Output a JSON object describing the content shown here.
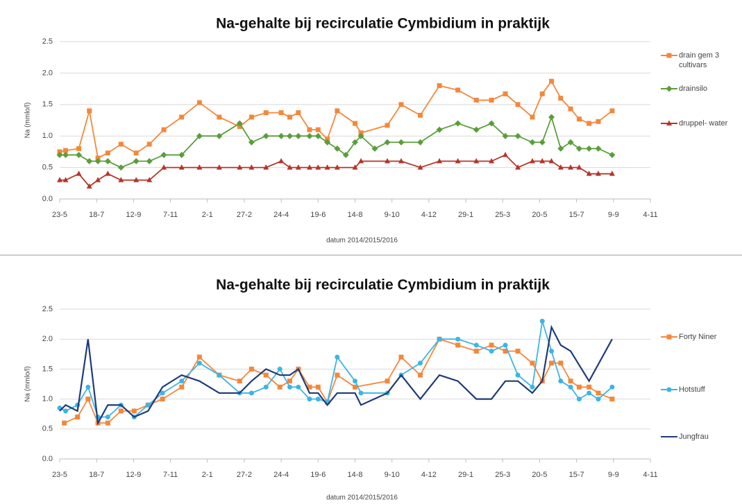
{
  "chart_data": [
    {
      "type": "line",
      "title": "Na-gehalte bij recirculatie Cymbidium in praktijk",
      "x_label": "datum 2014/2015/2016",
      "y_label": "Na (mmlo/l)",
      "xlim": [
        0,
        896
      ],
      "ylim": [
        0,
        2.5
      ],
      "yticks": [
        {
          "value": 0,
          "label": "0.0"
        },
        0.5,
        {
          "value": 1,
          "label": "1.0"
        },
        1.5,
        {
          "value": 2,
          "label": "2.0"
        },
        2.5
      ],
      "xticks": [
        {
          "value": 0,
          "label": "23-5"
        },
        {
          "value": 56,
          "label": "18-7"
        },
        {
          "value": 112,
          "label": "12-9"
        },
        {
          "value": 168,
          "label": "7-11"
        },
        {
          "value": 224,
          "label": "2-1"
        },
        {
          "value": 280,
          "label": "27-2"
        },
        {
          "value": 336,
          "label": "24-4"
        },
        {
          "value": 392,
          "label": "19-6"
        },
        {
          "value": 448,
          "label": "14-8"
        },
        {
          "value": 504,
          "label": "9-10"
        },
        {
          "value": 560,
          "label": "4-12"
        },
        {
          "value": 616,
          "label": "29-1"
        },
        {
          "value": 672,
          "label": "25-3"
        },
        {
          "value": 728,
          "label": "20-5"
        },
        {
          "value": 784,
          "label": "15-7"
        },
        {
          "value": 840,
          "label": "9-9"
        },
        {
          "value": 896,
          "label": "4-11"
        }
      ],
      "grid": true,
      "legend": "right",
      "series": [
        {
          "name": "drain gem 3 cultivars",
          "color": "#f4873a",
          "marker": "square",
          "x": [
            0,
            9,
            29,
            45,
            58,
            73,
            93,
            116,
            136,
            158,
            185,
            212,
            242,
            273,
            291,
            313,
            336,
            349,
            362,
            379,
            392,
            406,
            421,
            448,
            457,
            497,
            518,
            547,
            576,
            604,
            632,
            655,
            676,
            695,
            717,
            732,
            746,
            760,
            775,
            788,
            803,
            817,
            838
          ],
          "values": [
            0.75,
            0.77,
            0.8,
            1.4,
            0.65,
            0.73,
            0.87,
            0.73,
            0.87,
            1.1,
            1.3,
            1.53,
            1.3,
            1.15,
            1.3,
            1.37,
            1.37,
            1.3,
            1.37,
            1.1,
            1.1,
            0.95,
            1.4,
            1.2,
            1.05,
            1.17,
            1.5,
            1.33,
            1.8,
            1.73,
            1.57,
            1.57,
            1.67,
            1.5,
            1.3,
            1.67,
            1.87,
            1.6,
            1.43,
            1.27,
            1.2,
            1.23,
            1.4
          ]
        },
        {
          "name": "drainsilo",
          "color": "#5a9e3a",
          "marker": "diamond",
          "x": [
            0,
            9,
            29,
            45,
            58,
            73,
            93,
            116,
            136,
            158,
            185,
            212,
            242,
            273,
            291,
            313,
            336,
            349,
            362,
            379,
            392,
            406,
            421,
            434,
            448,
            457,
            478,
            497,
            518,
            547,
            576,
            604,
            632,
            655,
            676,
            695,
            717,
            732,
            746,
            760,
            775,
            788,
            803,
            817,
            838
          ],
          "values": [
            0.7,
            0.7,
            0.7,
            0.6,
            0.6,
            0.6,
            0.5,
            0.6,
            0.6,
            0.7,
            0.7,
            1.0,
            1.0,
            1.2,
            0.9,
            1.0,
            1.0,
            1.0,
            1.0,
            1.0,
            1.0,
            0.9,
            0.8,
            0.7,
            0.9,
            1.0,
            0.8,
            0.9,
            0.9,
            0.9,
            1.1,
            1.2,
            1.1,
            1.2,
            1.0,
            1.0,
            0.9,
            0.9,
            1.3,
            0.8,
            0.9,
            0.8,
            0.8,
            0.8,
            0.7
          ]
        },
        {
          "name": "druppel- water",
          "color": "#b5352a",
          "marker": "triangle",
          "x": [
            0,
            9,
            29,
            45,
            58,
            73,
            93,
            116,
            136,
            158,
            185,
            212,
            242,
            273,
            291,
            313,
            336,
            349,
            362,
            379,
            392,
            406,
            421,
            448,
            457,
            497,
            518,
            547,
            576,
            604,
            632,
            655,
            676,
            695,
            717,
            732,
            746,
            760,
            775,
            788,
            803,
            817,
            838
          ],
          "values": [
            0.3,
            0.3,
            0.4,
            0.2,
            0.3,
            0.4,
            0.3,
            0.3,
            0.3,
            0.5,
            0.5,
            0.5,
            0.5,
            0.5,
            0.5,
            0.5,
            0.6,
            0.5,
            0.5,
            0.5,
            0.5,
            0.5,
            0.5,
            0.5,
            0.6,
            0.6,
            0.6,
            0.5,
            0.6,
            0.6,
            0.6,
            0.6,
            0.7,
            0.5,
            0.6,
            0.6,
            0.6,
            0.5,
            0.5,
            0.5,
            0.4,
            0.4,
            0.4
          ]
        }
      ]
    },
    {
      "type": "line",
      "title": "Na-gehalte bij recirculatie Cymbidium in praktijk",
      "x_label": "datum 2014/2015/2016",
      "y_label": "Na (mmlo/l)",
      "xlim": [
        0,
        896
      ],
      "ylim": [
        0,
        2.5
      ],
      "yticks": [
        {
          "value": 0,
          "label": "0.0"
        },
        0.5,
        {
          "value": 1,
          "label": "1.0"
        },
        1.5,
        {
          "value": 2,
          "label": "2.0"
        },
        2.5
      ],
      "xticks": [
        {
          "value": 0,
          "label": "23-5"
        },
        {
          "value": 56,
          "label": "18-7"
        },
        {
          "value": 112,
          "label": "12-9"
        },
        {
          "value": 168,
          "label": "7-11"
        },
        {
          "value": 224,
          "label": "2-1"
        },
        {
          "value": 280,
          "label": "27-2"
        },
        {
          "value": 336,
          "label": "24-4"
        },
        {
          "value": 392,
          "label": "19-6"
        },
        {
          "value": 448,
          "label": "14-8"
        },
        {
          "value": 504,
          "label": "9-10"
        },
        {
          "value": 560,
          "label": "4-12"
        },
        {
          "value": 616,
          "label": "29-1"
        },
        {
          "value": 672,
          "label": "25-3"
        },
        {
          "value": 728,
          "label": "20-5"
        },
        {
          "value": 784,
          "label": "15-7"
        },
        {
          "value": 840,
          "label": "9-9"
        },
        {
          "value": 896,
          "label": "4-11"
        }
      ],
      "grid": true,
      "legend": "right",
      "series": [
        {
          "name": "Forty Niner",
          "color": "#f4873a",
          "marker": "square",
          "x": [
            7,
            27,
            43,
            58,
            73,
            93,
            113,
            134,
            156,
            185,
            212,
            242,
            273,
            291,
            313,
            334,
            349,
            362,
            379,
            392,
            406,
            421,
            448,
            497,
            518,
            547,
            576,
            604,
            632,
            655,
            676,
            695,
            717,
            732,
            746,
            760,
            775,
            788,
            803,
            817,
            838
          ],
          "values": [
            0.6,
            0.7,
            1.0,
            0.6,
            0.6,
            0.8,
            0.8,
            0.9,
            1.0,
            1.2,
            1.7,
            1.4,
            1.3,
            1.5,
            1.4,
            1.2,
            1.3,
            1.5,
            1.2,
            1.2,
            0.95,
            1.4,
            1.2,
            1.3,
            1.7,
            1.4,
            2.0,
            1.9,
            1.8,
            1.9,
            1.8,
            1.8,
            1.6,
            1.3,
            1.6,
            1.6,
            1.3,
            1.2,
            1.2,
            1.1,
            1.0
          ]
        },
        {
          "name": "Hotstuff",
          "color": "#3cb4e6",
          "marker": "circle",
          "x": [
            0,
            9,
            27,
            43,
            58,
            73,
            93,
            113,
            134,
            156,
            185,
            212,
            242,
            273,
            291,
            313,
            334,
            349,
            362,
            379,
            392,
            406,
            421,
            448,
            457,
            497,
            518,
            547,
            576,
            604,
            632,
            655,
            676,
            695,
            717,
            732,
            746,
            760,
            775,
            788,
            803,
            817,
            838
          ],
          "values": [
            0.85,
            0.8,
            0.9,
            1.2,
            0.7,
            0.7,
            0.9,
            0.7,
            0.9,
            1.1,
            1.3,
            1.6,
            1.4,
            1.1,
            1.1,
            1.2,
            1.5,
            1.2,
            1.2,
            1.0,
            1.0,
            0.95,
            1.7,
            1.3,
            1.1,
            1.1,
            1.4,
            1.6,
            2.0,
            2.0,
            1.9,
            1.8,
            1.9,
            1.4,
            1.2,
            2.3,
            1.8,
            1.3,
            1.2,
            1.0,
            1.1,
            1.0,
            1.2
          ]
        },
        {
          "name": "Jungfrau",
          "color": "#1f3a7a",
          "marker": "none",
          "x": [
            0,
            9,
            27,
            43,
            58,
            73,
            93,
            113,
            134,
            156,
            185,
            212,
            242,
            273,
            291,
            313,
            334,
            349,
            362,
            379,
            392,
            406,
            421,
            448,
            457,
            497,
            518,
            547,
            576,
            604,
            632,
            655,
            676,
            695,
            717,
            732,
            746,
            760,
            775,
            803,
            838
          ],
          "values": [
            0.8,
            0.9,
            0.8,
            2.0,
            0.6,
            0.9,
            0.9,
            0.7,
            0.8,
            1.2,
            1.4,
            1.3,
            1.1,
            1.1,
            1.3,
            1.5,
            1.4,
            1.4,
            1.5,
            1.1,
            1.1,
            0.9,
            1.1,
            1.1,
            0.9,
            1.1,
            1.4,
            1.0,
            1.4,
            1.3,
            1.0,
            1.0,
            1.3,
            1.3,
            1.1,
            1.3,
            2.2,
            1.9,
            1.8,
            1.3,
            2.0
          ]
        }
      ]
    }
  ]
}
